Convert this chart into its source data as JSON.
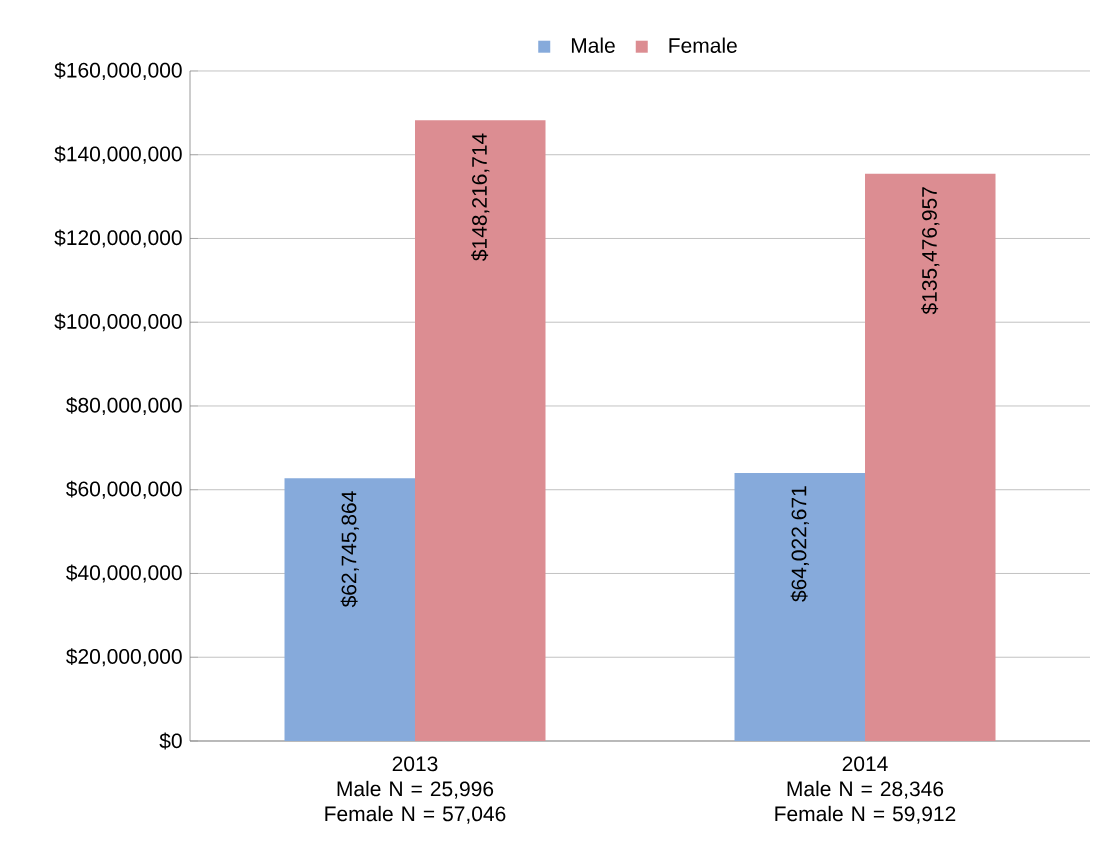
{
  "chart_data": {
    "type": "bar",
    "categories": [
      "2013\nMale N = 25,996\nFemale N = 57,046",
      "2014\nMale N = 28,346\nFemale N = 59,912"
    ],
    "series": [
      {
        "name": "Male",
        "color": "#86aadb",
        "values": [
          62745864,
          64022671
        ],
        "value_labels": [
          "$62,745,864",
          "$64,022,671"
        ]
      },
      {
        "name": "Female",
        "color": "#dc8d92",
        "values": [
          148216714,
          135476957
        ],
        "value_labels": [
          "$148,216,714",
          "$135,476,957"
        ]
      }
    ],
    "ylim": [
      0,
      160000000
    ],
    "yticks": [
      {
        "value": 0,
        "label": "$0"
      },
      {
        "value": 20000000,
        "label": "$20,000,000"
      },
      {
        "value": 40000000,
        "label": "$40,000,000"
      },
      {
        "value": 60000000,
        "label": "$60,000,000"
      },
      {
        "value": 80000000,
        "label": "$80,000,000"
      },
      {
        "value": 100000000,
        "label": "$100,000,000"
      },
      {
        "value": 120000000,
        "label": "$120,000,000"
      },
      {
        "value": 140000000,
        "label": "$140,000,000"
      },
      {
        "value": 160000000,
        "label": "$160,000,000"
      }
    ],
    "grid": "y",
    "legend": "top"
  }
}
